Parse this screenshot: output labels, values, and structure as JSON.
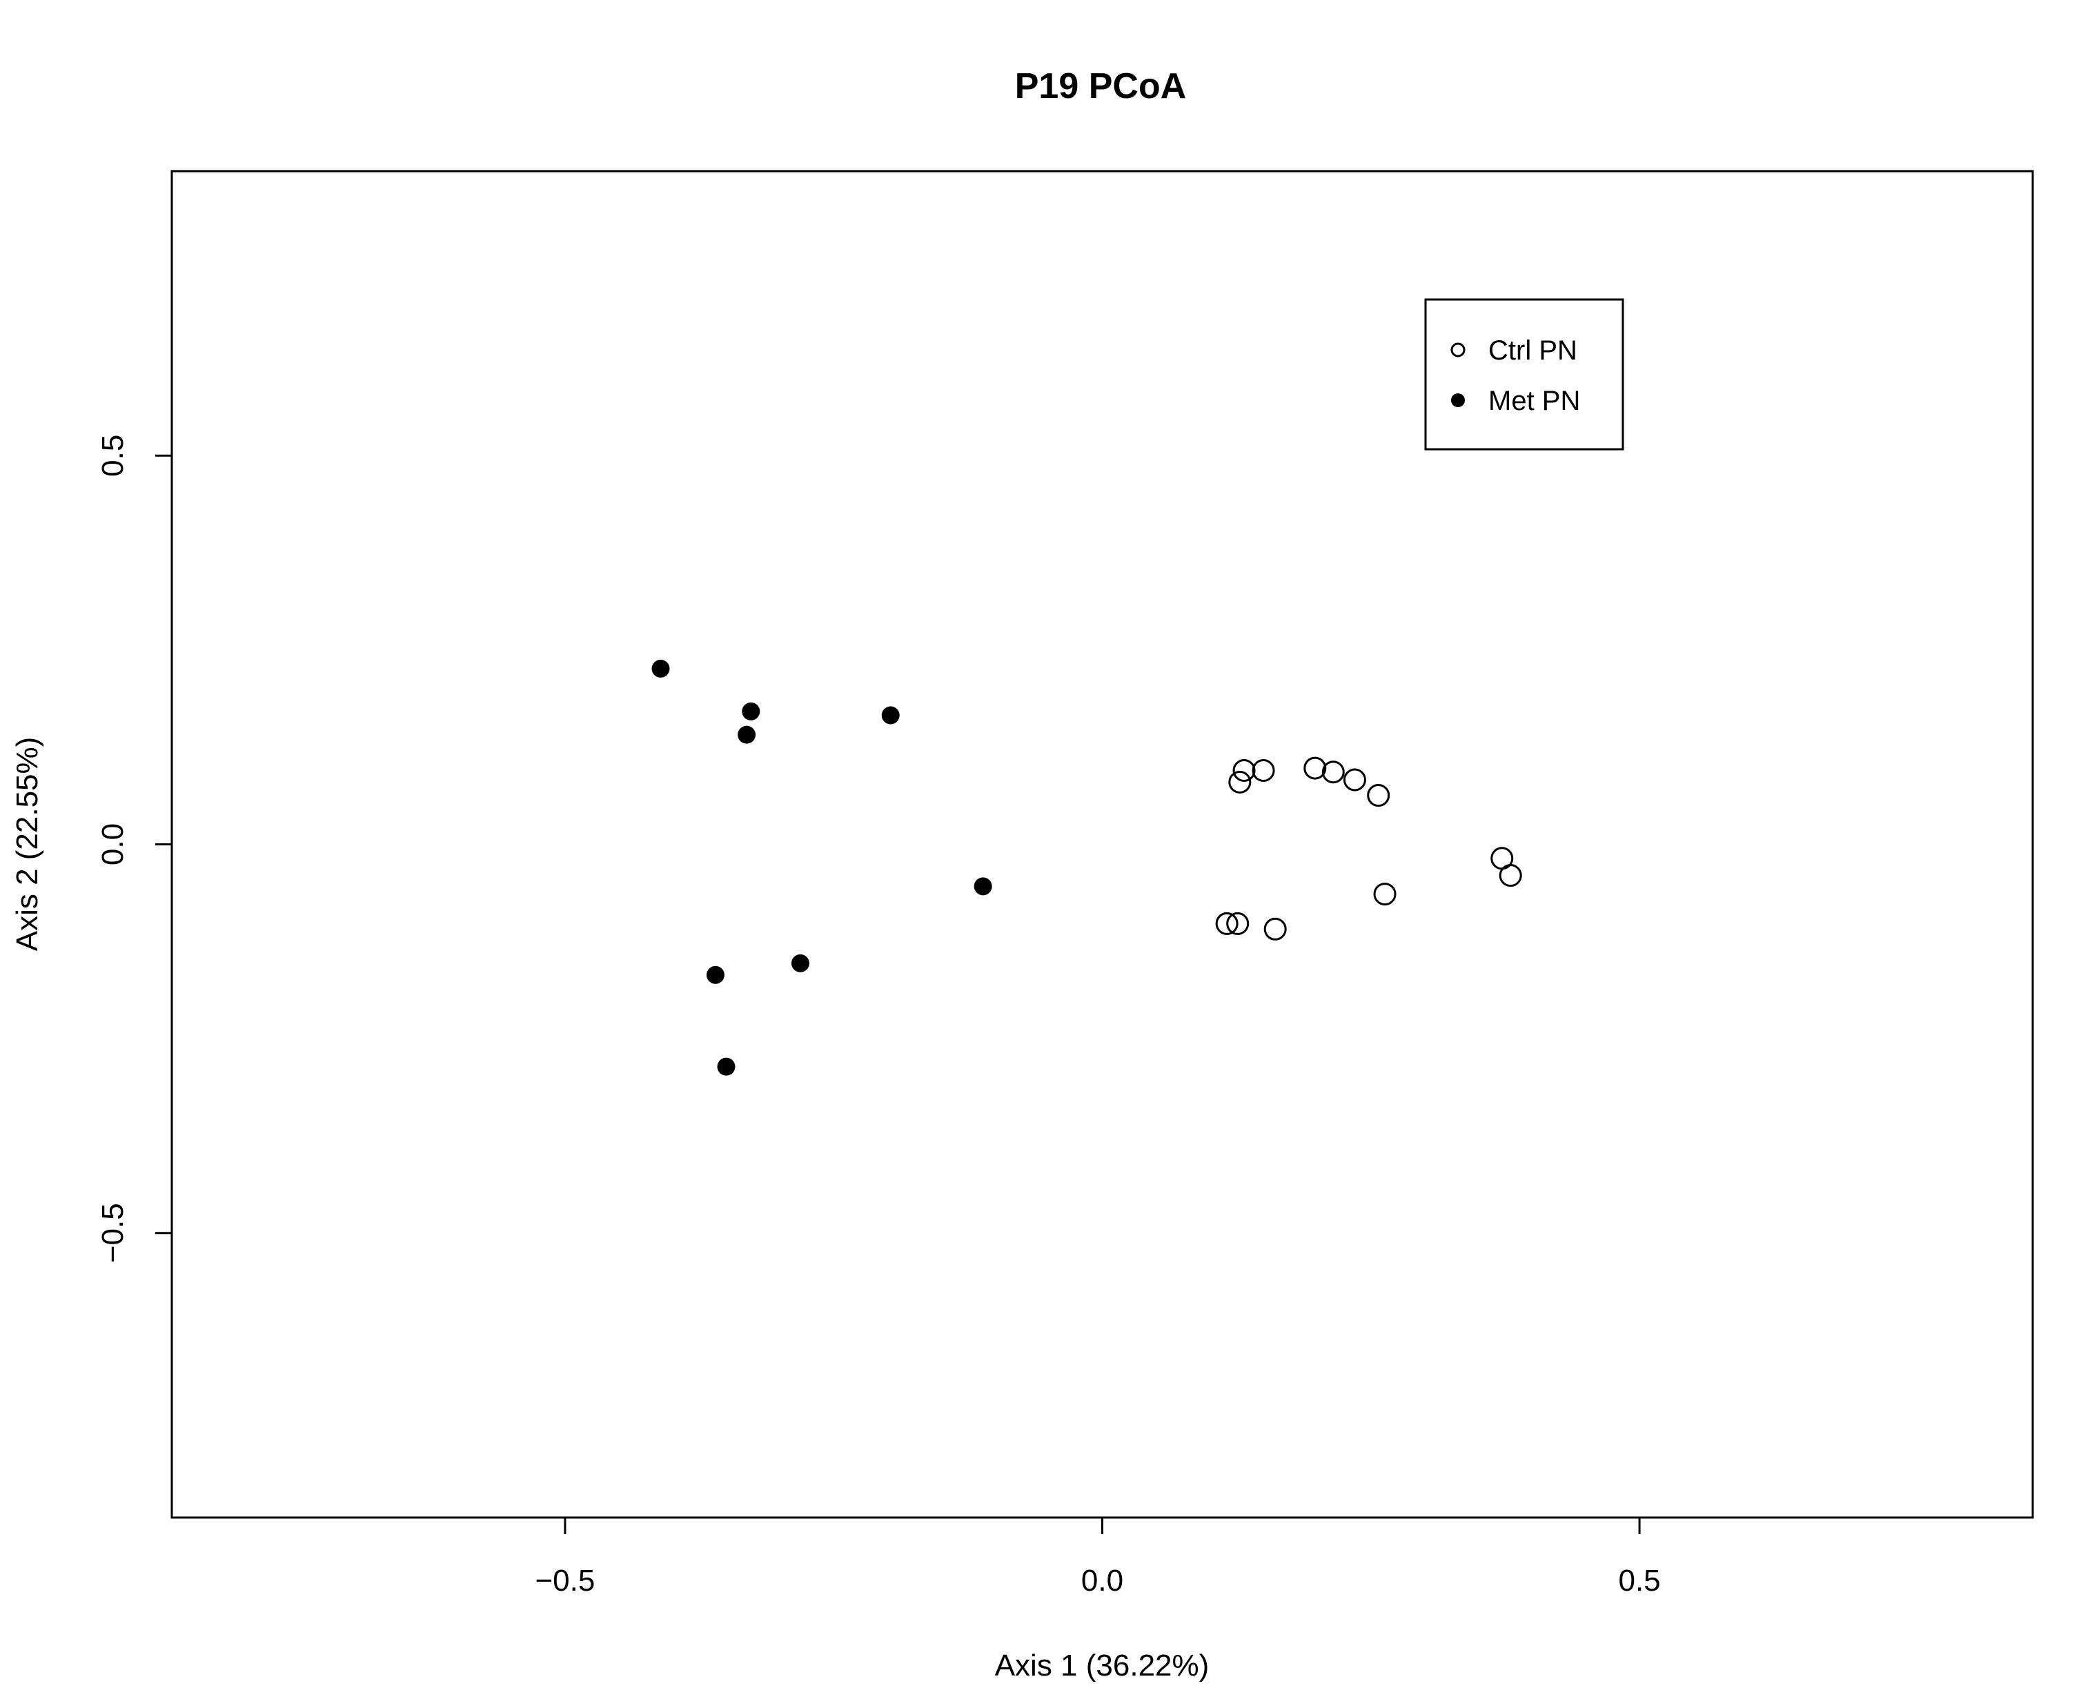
{
  "chart_data": {
    "type": "scatter",
    "title": "P19 PCoA",
    "xlabel": "Axis 1 (36.22%)",
    "ylabel": "Axis 2 (22.55%)",
    "xlim": [
      -0.866,
      0.866
    ],
    "ylim": [
      -0.866,
      0.866
    ],
    "x_ticks": [
      {
        "value": -0.5,
        "label": "−0.5"
      },
      {
        "value": 0.0,
        "label": "0.0"
      },
      {
        "value": 0.5,
        "label": "0.5"
      }
    ],
    "y_ticks": [
      {
        "value": -0.5,
        "label": "−0.5"
      },
      {
        "value": 0.0,
        "label": "0.0"
      },
      {
        "value": 0.5,
        "label": "0.5"
      }
    ],
    "grid": false,
    "legend_position": "top-right",
    "series": [
      {
        "name": "Ctrl PN",
        "marker": "open-circle",
        "points": [
          {
            "x": 0.132,
            "y": 0.095
          },
          {
            "x": 0.128,
            "y": 0.08
          },
          {
            "x": 0.15,
            "y": 0.095
          },
          {
            "x": 0.198,
            "y": 0.098
          },
          {
            "x": 0.215,
            "y": 0.093
          },
          {
            "x": 0.235,
            "y": 0.083
          },
          {
            "x": 0.257,
            "y": 0.063
          },
          {
            "x": 0.372,
            "y": -0.018
          },
          {
            "x": 0.38,
            "y": -0.04
          },
          {
            "x": 0.263,
            "y": -0.064
          },
          {
            "x": 0.116,
            "y": -0.102
          },
          {
            "x": 0.126,
            "y": -0.102
          },
          {
            "x": 0.161,
            "y": -0.109
          }
        ]
      },
      {
        "name": "Met PN",
        "marker": "filled-circle",
        "points": [
          {
            "x": -0.411,
            "y": 0.226
          },
          {
            "x": -0.327,
            "y": 0.171
          },
          {
            "x": -0.331,
            "y": 0.141
          },
          {
            "x": -0.197,
            "y": 0.166
          },
          {
            "x": -0.111,
            "y": -0.054
          },
          {
            "x": -0.281,
            "y": -0.153
          },
          {
            "x": -0.36,
            "y": -0.168
          },
          {
            "x": -0.35,
            "y": -0.286
          }
        ]
      }
    ]
  }
}
